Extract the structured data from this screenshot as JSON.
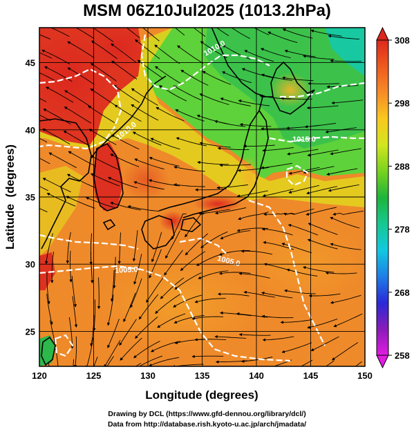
{
  "chart_data": {
    "type": "heatmap",
    "title": "MSM 06Z10Jul2025 (1013.2hPa)",
    "xlabel": "Longitude (degrees)",
    "ylabel": "Latitude  (degrees)",
    "xlim": [
      120,
      150
    ],
    "ylim": [
      22.4,
      47.6
    ],
    "x_ticks": [
      120,
      125,
      130,
      135,
      140,
      145,
      150
    ],
    "y_ticks": [
      25,
      30,
      35,
      40,
      45
    ],
    "colorbar": {
      "min": 258,
      "max": 308,
      "ticks": [
        258,
        268,
        278,
        288,
        298,
        308
      ],
      "colors": [
        "#e01ce0",
        "#8a1cb8",
        "#2a2ad8",
        "#1e7ee6",
        "#12c8e0",
        "#16c890",
        "#1eb43c",
        "#78d21e",
        "#d2e61e",
        "#fac81e",
        "#f68c28",
        "#ef5a1e",
        "#dc281e"
      ],
      "extend": "both"
    },
    "contour_labels": [
      "1005.0",
      "1005.0",
      "1010.0",
      "1010.0",
      "1015.0"
    ]
  },
  "credits": {
    "line1": "Drawing by DCL (https://www.gfd-dennou.org/library/dcl/)",
    "line2": "Data from http://database.rish.kyoto-u.ac.jp/arch/jmadata/"
  }
}
